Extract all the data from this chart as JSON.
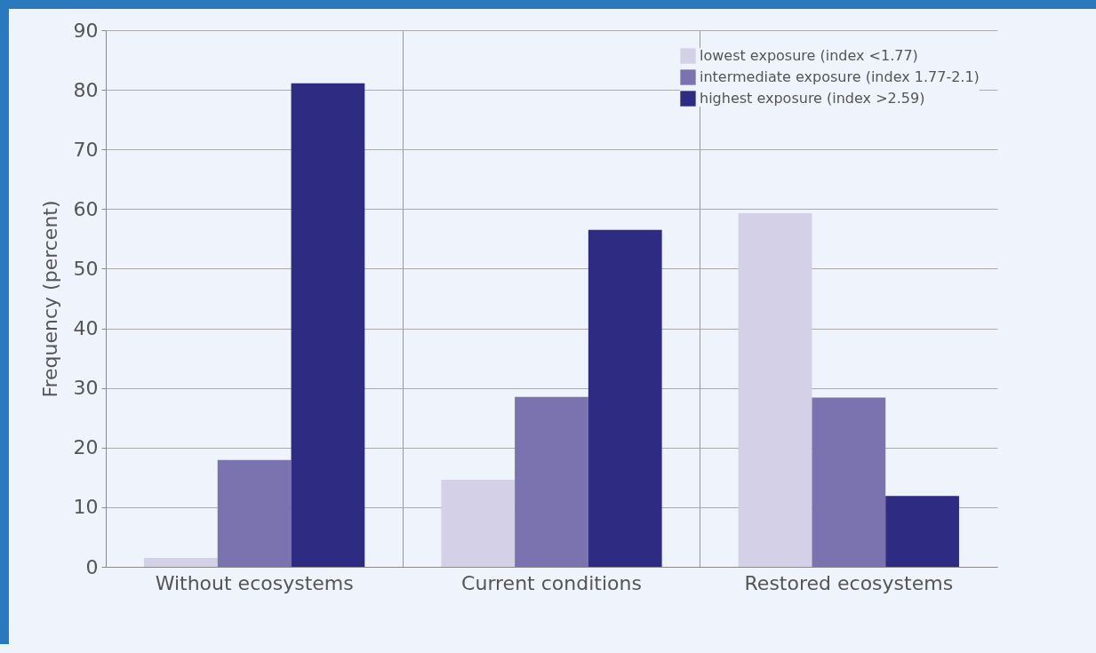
{
  "chart_data": {
    "type": "bar",
    "ylabel": "Frequency (percent)",
    "categories": [
      "Without ecosystems",
      "Current conditions",
      "Restored ecosystems"
    ],
    "series": [
      {
        "name": "lowest exposure (index <1.77)",
        "color": "#d3d0e7",
        "values": [
          1.5,
          14.6,
          59.3
        ]
      },
      {
        "name": "intermediate exposure (index 1.77-2.1)",
        "color": "#7b73b0",
        "values": [
          17.9,
          28.5,
          28.4
        ]
      },
      {
        "name": "highest exposure (index >2.59)",
        "color": "#2d2c82",
        "values": [
          81.1,
          56.5,
          11.9
        ]
      }
    ],
    "ylim": [
      0,
      90
    ],
    "yticks": [
      0,
      10,
      20,
      30,
      40,
      50,
      60,
      70,
      80,
      90
    ],
    "grid": true,
    "legend": "top right"
  }
}
